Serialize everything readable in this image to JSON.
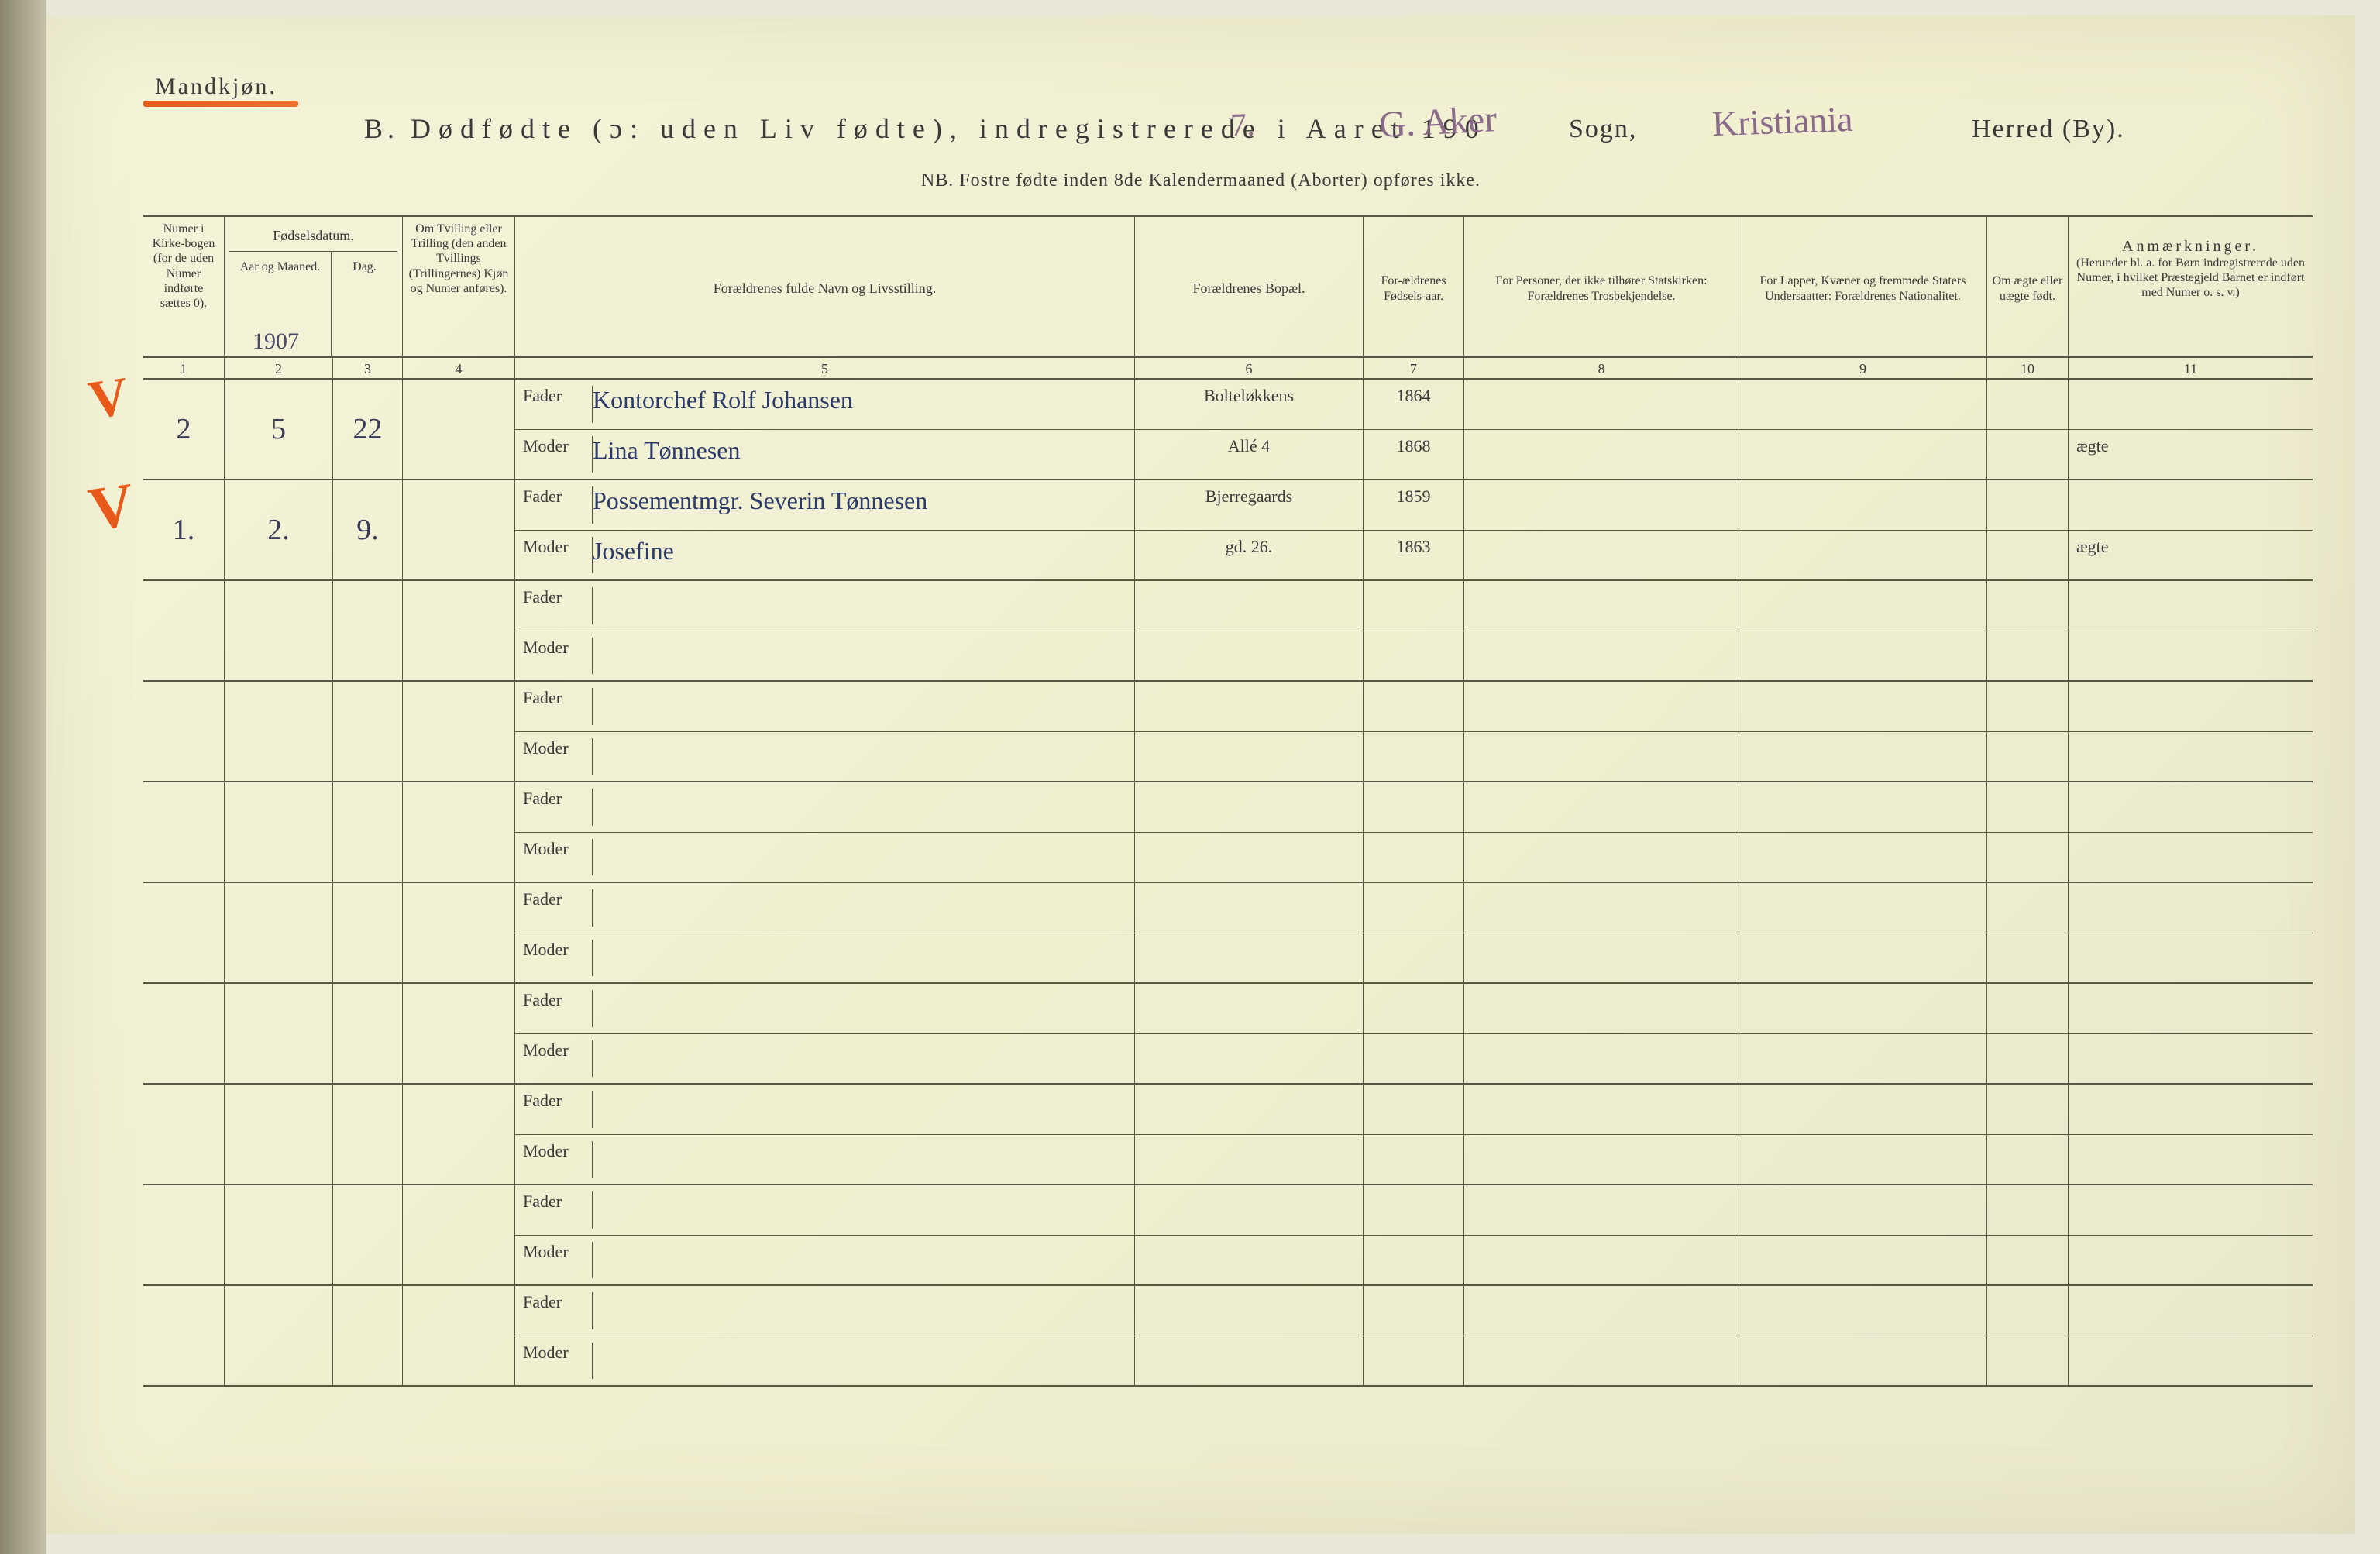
{
  "header": {
    "gender_label": "Mandkjøn.",
    "title_prefix": "B.",
    "title_main": "Dødfødte (ɔ: uden Liv fødte), indregistrerede i Aaret 190",
    "year_suffix_hand": "7.",
    "sogn_hand": "G. Aker",
    "sogn_label": "Sogn,",
    "herred_hand": "Kristiania",
    "herred_label": "Herred (By).",
    "nb_line": "NB.  Fostre fødte inden 8de Kalendermaaned (Aborter) opføres ikke."
  },
  "columns": {
    "c1": {
      "label": "Numer i Kirke-bogen (for de uden Numer indførte sættes 0).",
      "num": "1"
    },
    "c2": {
      "label": "Fødselsdatum.",
      "sub_a": "Aar og Maaned.",
      "sub_b": "Dag.",
      "num_a": "2",
      "num_b": "3",
      "year_hand": "1907"
    },
    "c3": {
      "label": "Om Tvilling eller Trilling (den anden Tvillings (Trillingernes) Kjøn og Numer anføres).",
      "num": "4"
    },
    "c4": {
      "label": "Forældrenes fulde Navn og Livsstilling.",
      "num": "5"
    },
    "c5": {
      "label": "Forældrenes Bopæl.",
      "num": "6"
    },
    "c6": {
      "label": "For-ældrenes Fødsels-aar.",
      "num": "7"
    },
    "c7": {
      "label": "For Personer, der ikke tilhører Statskirken: Forældrenes Trosbekjendelse.",
      "num": "8"
    },
    "c8": {
      "label": "For Lapper, Kvæner og fremmede Staters Undersaatter: Forældrenes Nationalitet.",
      "num": "9"
    },
    "c9": {
      "label": "Om ægte eller uægte født.",
      "num": "10"
    },
    "c10": {
      "label": "Anmærkninger.",
      "sublabel": "(Herunder bl. a. for Børn indregistrerede uden Numer, i hvilket Præstegjeld Barnet er indført med Numer o. s. v.)",
      "num": "11"
    }
  },
  "roles": {
    "father": "Fader",
    "mother": "Moder"
  },
  "entries": [
    {
      "check": "✓",
      "num": "2",
      "month": "5",
      "day": "22",
      "father_name": "Kontorchef  Rolf  Johansen",
      "mother_name": "Lina   Tønnesen",
      "father_addr": "Bolteløkkens",
      "mother_addr": "Allé      4",
      "father_year": "1864",
      "mother_year": "1868",
      "legit": "ægte"
    },
    {
      "check": "✓",
      "num": "1.",
      "month": "2.",
      "day": "9.",
      "father_name": "Possementmgr.  Severin  Tønnesen",
      "mother_name": "Josefine",
      "father_addr": "Bjerregaards",
      "mother_addr": "gd. 26.",
      "father_year": "1859",
      "mother_year": "1863",
      "legit": "ægte"
    }
  ],
  "empty_rows": 8,
  "style": {
    "paper_bg": "#f0efd0",
    "ink": "#3a3a3a",
    "rule": "#575744",
    "orange": "#e85a1a",
    "hand_ink": "#3b3b5a"
  }
}
